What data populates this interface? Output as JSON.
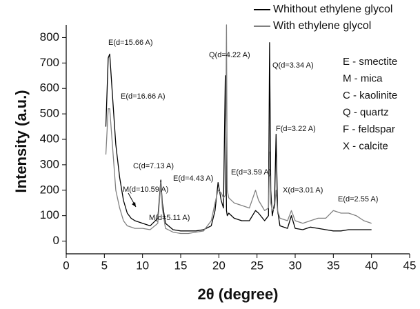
{
  "chart_data": {
    "type": "line",
    "x_label": "2θ (degree)",
    "y_label": "Intensity (a.u.)",
    "xlim": [
      0,
      45
    ],
    "xticks": [
      0,
      5,
      10,
      15,
      20,
      25,
      30,
      35,
      40,
      45
    ],
    "ylim": [
      -50,
      850
    ],
    "yticks": [
      0,
      100,
      200,
      300,
      400,
      500,
      600,
      700,
      800
    ],
    "grid": false,
    "x": [
      5.2,
      5.5,
      5.7,
      6,
      6.5,
      7,
      7.5,
      8,
      8.5,
      9,
      10,
      11,
      12,
      12.4,
      12.6,
      13,
      14,
      15,
      16,
      17,
      18,
      19,
      19.5,
      19.9,
      20.3,
      20.6,
      20.85,
      21,
      21.1,
      21.3,
      22,
      23,
      24,
      24.8,
      25.2,
      26,
      26.5,
      26.65,
      26.8,
      27,
      27.3,
      27.5,
      27.7,
      28,
      29,
      29.5,
      30,
      31,
      32,
      33,
      34,
      35,
      36,
      37,
      38,
      39,
      40
    ],
    "series": [
      {
        "name": "Whithout ethylene glycol",
        "color": "#000000",
        "values": [
          450,
          720,
          735,
          600,
          380,
          250,
          160,
          110,
          90,
          80,
          70,
          60,
          90,
          240,
          150,
          70,
          45,
          40,
          40,
          40,
          45,
          60,
          120,
          230,
          160,
          130,
          650,
          120,
          100,
          110,
          90,
          80,
          80,
          120,
          110,
          80,
          100,
          780,
          200,
          100,
          150,
          420,
          120,
          60,
          50,
          100,
          50,
          45,
          55,
          50,
          45,
          40,
          40,
          45,
          45,
          45,
          45
        ]
      },
      {
        "name": "With ethylene glycol",
        "color": "#808080",
        "values": [
          340,
          520,
          520,
          400,
          200,
          130,
          80,
          60,
          55,
          50,
          50,
          45,
          70,
          230,
          130,
          50,
          35,
          30,
          30,
          35,
          40,
          80,
          150,
          200,
          190,
          170,
          180,
          850,
          200,
          170,
          150,
          140,
          130,
          200,
          160,
          120,
          130,
          350,
          150,
          120,
          130,
          200,
          120,
          90,
          80,
          120,
          80,
          70,
          80,
          90,
          90,
          120,
          110,
          110,
          100,
          80,
          70
        ]
      }
    ],
    "annotations": [
      "E(d=15.66 A)",
      "E(d=16.66 A)",
      "C(d=7.13 A)",
      "M(d=10.59 A)",
      "E(d=4.43 A)",
      "M(d=5.11 A)",
      "Q(d=4.22 A)",
      "E(d=3.59 A)",
      "Q(d=3.34 A)",
      "F(d=3.22 A)",
      "X(d=3.01 A)",
      "E(d=2.55 A)"
    ],
    "key": [
      "E - smectite",
      "M - mica",
      "C - kaolinite",
      "Q - quartz",
      "F - feldspar",
      "X - calcite"
    ]
  }
}
